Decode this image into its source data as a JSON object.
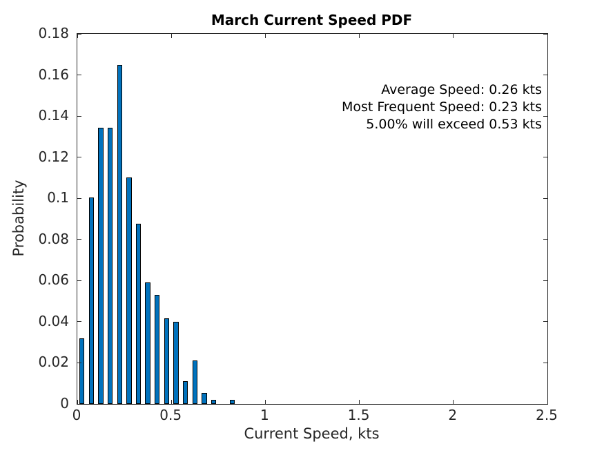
{
  "figure": {
    "title": "March Current Speed PDF",
    "xlabel": "Current Speed, kts",
    "ylabel": "Probability"
  },
  "chart_data": {
    "type": "bar",
    "title": "March Current Speed PDF",
    "xlabel": "Current Speed, kts",
    "ylabel": "Probability",
    "x": [
      0.025,
      0.075,
      0.125,
      0.175,
      0.225,
      0.275,
      0.325,
      0.375,
      0.425,
      0.475,
      0.525,
      0.575,
      0.625,
      0.675,
      0.725,
      0.775,
      0.825
    ],
    "values": [
      0.032,
      0.1005,
      0.1345,
      0.1345,
      0.165,
      0.11,
      0.0875,
      0.059,
      0.053,
      0.0415,
      0.04,
      0.011,
      0.021,
      0.0055,
      0.002,
      0,
      0.002
    ],
    "bar_width_kts": 0.027,
    "xlim": [
      0,
      2.5
    ],
    "ylim": [
      0,
      0.18
    ],
    "x_ticks": [
      0,
      0.5,
      1,
      1.5,
      2,
      2.5
    ],
    "x_tick_labels": [
      "0",
      "0.5",
      "1",
      "1.5",
      "2",
      "2.5"
    ],
    "y_ticks": [
      0,
      0.02,
      0.04,
      0.06,
      0.08,
      0.1,
      0.12,
      0.14,
      0.16,
      0.18
    ],
    "y_tick_labels": [
      "0",
      "0.02",
      "0.04",
      "0.06",
      "0.08",
      "0.1",
      "0.12",
      "0.14",
      "0.16",
      "0.18"
    ],
    "annotations": [
      "Average Speed: 0.26 kts",
      "Most Frequent Speed: 0.23 kts",
      "5.00% will exceed 0.53 kts"
    ],
    "colors": {
      "bar_fill": "#0072BD",
      "bar_edge": "#000000",
      "axis": "#262626",
      "tick_text": "#262626",
      "title_text": "#000000",
      "annotation_text": "#000000",
      "background": "#ffffff"
    },
    "grid": false,
    "legend_position": "none"
  }
}
